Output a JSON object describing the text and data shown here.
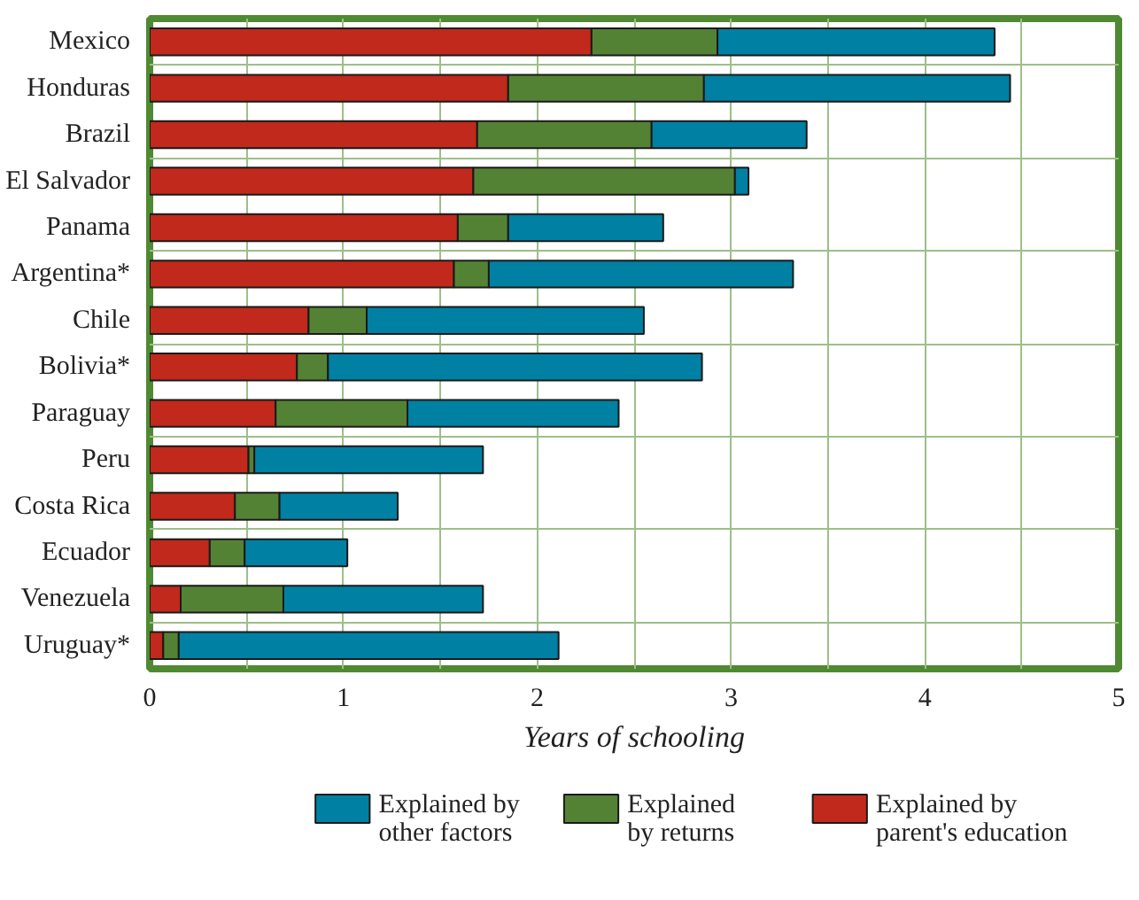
{
  "chart_data": {
    "type": "bar",
    "orientation": "horizontal",
    "stacked": true,
    "xlabel": "Years of schooling",
    "categories": [
      "Mexico",
      "Honduras",
      "Brazil",
      "El Salvador",
      "Panama",
      "Argentina*",
      "Chile",
      "Bolivia*",
      "Paraguay",
      "Peru",
      "Costa Rica",
      "Ecuador",
      "Venezuela",
      "Uruguay*"
    ],
    "series": [
      {
        "name": "Explained by\nparent's education",
        "color": "#c0291b",
        "values": [
          2.28,
          1.85,
          1.69,
          1.67,
          1.59,
          1.57,
          0.82,
          0.76,
          0.65,
          0.51,
          0.44,
          0.31,
          0.16,
          0.07
        ]
      },
      {
        "name": "Explained\nby returns",
        "color": "#548235",
        "values": [
          0.65,
          1.01,
          0.9,
          1.35,
          0.26,
          0.18,
          0.3,
          0.16,
          0.68,
          0.03,
          0.23,
          0.18,
          0.53,
          0.08
        ]
      },
      {
        "name": "Explained by\nother factors",
        "color": "#0080a3",
        "values": [
          1.43,
          1.58,
          0.8,
          0.07,
          0.8,
          1.57,
          1.43,
          1.93,
          1.09,
          1.18,
          0.61,
          0.53,
          1.03,
          1.96
        ]
      }
    ],
    "xlim": [
      0,
      5
    ],
    "xticks": [
      0,
      1,
      2,
      3,
      4,
      5
    ],
    "grid": true,
    "legend": "bottom"
  }
}
